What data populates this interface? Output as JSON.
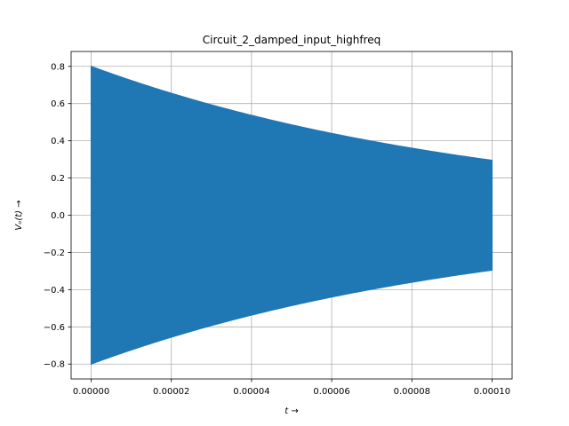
{
  "chart_data": {
    "type": "area",
    "title": "Circuit_2_damped_input_highfreq",
    "xlabel": "t →",
    "ylabel": "Vₒ(t) →",
    "xlim": [
      -5e-06,
      0.000105
    ],
    "ylim": [
      -0.88,
      0.88
    ],
    "xticks": [
      0,
      2e-05,
      4e-05,
      6e-05,
      8e-05,
      0.0001
    ],
    "xtick_labels": [
      "0.00000",
      "0.00002",
      "0.00004",
      "0.00006",
      "0.00008",
      "0.00010"
    ],
    "yticks": [
      -0.8,
      -0.6,
      -0.4,
      -0.2,
      0.0,
      0.2,
      0.4,
      0.6,
      0.8
    ],
    "ytick_labels": [
      "−0.8",
      "−0.6",
      "−0.4",
      "−0.2",
      "0.0",
      "0.2",
      "0.4",
      "0.6",
      "0.8"
    ],
    "grid": true,
    "series": [
      {
        "name": "V0(t)",
        "color": "#1f77b4",
        "description": "damped high-frequency oscillation, envelope decays from 0.8 to ~0.3",
        "envelope_x": [
          0,
          1e-05,
          2e-05,
          3e-05,
          4e-05,
          5e-05,
          6e-05,
          7e-05,
          8e-05,
          9e-05,
          0.0001
        ],
        "envelope_upper": [
          0.8,
          0.724,
          0.655,
          0.593,
          0.536,
          0.485,
          0.439,
          0.397,
          0.36,
          0.325,
          0.295
        ]
      }
    ]
  }
}
